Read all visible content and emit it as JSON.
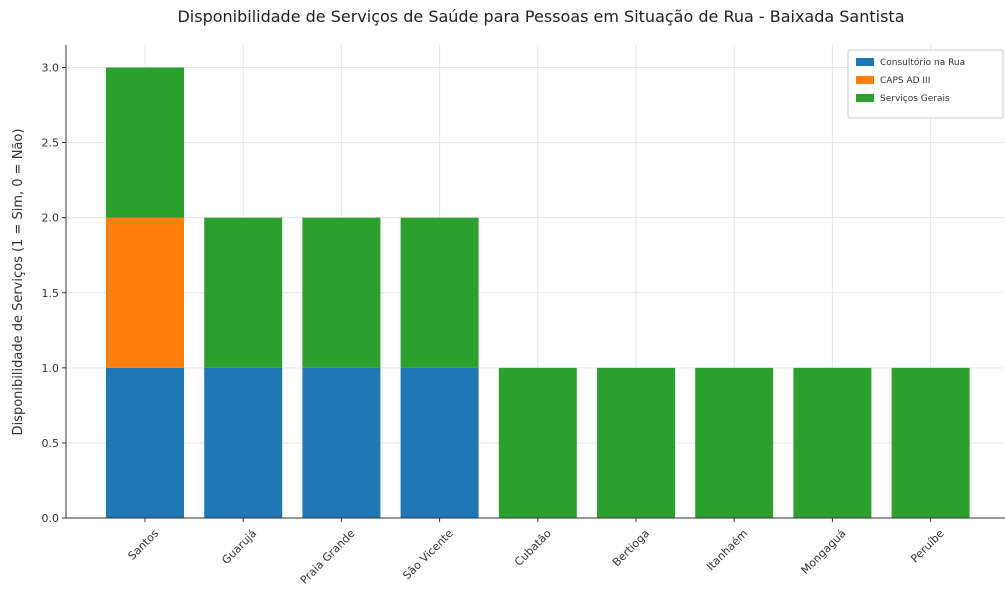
{
  "chart_data": {
    "type": "bar",
    "stacked": true,
    "title": "Disponibilidade de Serviços de Saúde para Pessoas em Situação de Rua - Baixada Santista",
    "xlabel": "",
    "ylabel": "Disponibilidade de Serviços (1 = Sim, 0 = Não)",
    "categories": [
      "Santos",
      "Guarujá",
      "Praia Grande",
      "São Vicente",
      "Cubatão",
      "Bertioga",
      "Itanhaém",
      "Mongaguá",
      "Peruíbe"
    ],
    "series": [
      {
        "name": "Consultório na Rua",
        "color": "#1f77b4",
        "values": [
          1,
          1,
          1,
          1,
          0,
          0,
          0,
          0,
          0
        ]
      },
      {
        "name": "CAPS AD III",
        "color": "#ff7f0e",
        "values": [
          1,
          0,
          0,
          0,
          0,
          0,
          0,
          0,
          0
        ]
      },
      {
        "name": "Serviços Gerais",
        "color": "#2ca02c",
        "values": [
          1,
          1,
          1,
          1,
          1,
          1,
          1,
          1,
          1
        ]
      }
    ],
    "ylim": [
      0,
      3.15
    ],
    "yticks": [
      "0.0",
      "0.5",
      "1.0",
      "1.5",
      "2.0",
      "2.5",
      "3.0"
    ],
    "grid": true,
    "legend_position": "top-right"
  }
}
